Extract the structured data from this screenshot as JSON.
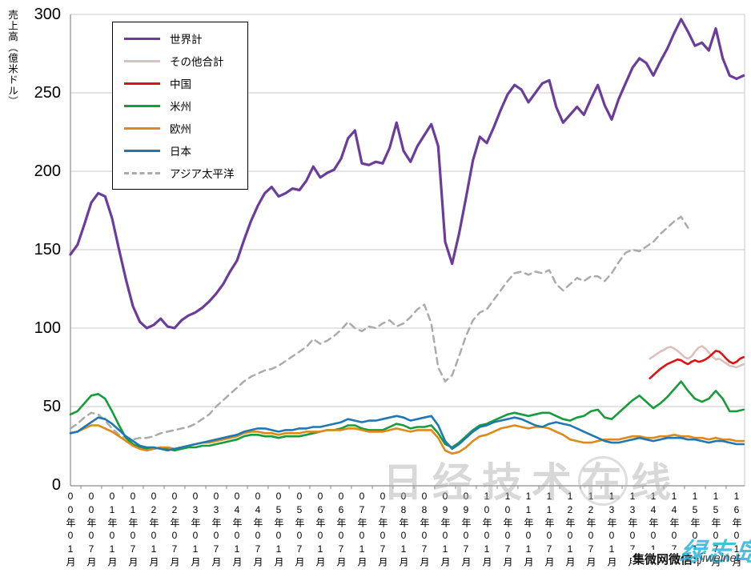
{
  "y_axis": {
    "title": "売上高（億米ドル）",
    "ticks": [
      "300",
      "250",
      "200",
      "150",
      "100",
      "50",
      "0"
    ],
    "max": 300,
    "min": 0,
    "step": 50
  },
  "x_axis": {
    "labels": [
      "00年01月",
      "00年07月",
      "01年01月",
      "01年07月",
      "02年01月",
      "02年07月",
      "03年01月",
      "03年07月",
      "04年01月",
      "04年07月",
      "05年01月",
      "05年07月",
      "06年01月",
      "06年07月",
      "07年01月",
      "07年07月",
      "08年01月",
      "08年07月",
      "09年01月",
      "09年07月",
      "10年01月",
      "10年07月",
      "11年01月",
      "11年07月",
      "12年01月",
      "12年07月",
      "13年01月",
      "13年07月",
      "14年01月",
      "14年07月",
      "15年01月",
      "15年07月",
      "16年01月"
    ]
  },
  "chart_data": {
    "type": "line",
    "title": "",
    "xlabel": "",
    "ylabel": "売上高（億米ドル）",
    "ylim": [
      0,
      300
    ],
    "grid": "horizontal",
    "legend_position": "top-left-box",
    "x_unit": "months since 2000-01 (each label step = 6 months)",
    "series": [
      {
        "name": "世界計",
        "color": "#6A3D9A",
        "dash": "solid",
        "width": 3.2,
        "start": 0,
        "step": 2,
        "values": [
          147,
          153,
          166,
          180,
          186,
          184,
          170,
          150,
          131,
          114,
          104,
          100,
          102,
          106,
          101,
          100,
          105,
          108,
          110,
          113,
          117,
          122,
          128,
          136,
          143,
          156,
          168,
          178,
          186,
          190,
          184,
          186,
          189,
          188,
          194,
          203,
          196,
          199,
          201,
          208,
          221,
          226,
          205,
          204,
          206,
          205,
          215,
          231,
          213,
          206,
          216,
          223,
          230,
          216,
          155,
          141,
          160,
          183,
          207,
          222,
          218,
          228,
          239,
          249,
          255,
          252,
          244,
          250,
          256,
          258,
          241,
          231,
          236,
          241,
          236,
          246,
          255,
          242,
          233,
          246,
          256,
          266,
          272,
          269,
          261,
          270,
          278,
          288,
          297,
          289,
          280,
          282,
          277,
          291,
          272,
          261,
          259,
          261
        ]
      },
      {
        "name": "その他合計",
        "color": "#DCC0BD",
        "dash": "solid",
        "width": 2.6,
        "start": 167,
        "step": 1,
        "values": [
          80.5,
          82,
          83.5,
          85,
          86,
          87.5,
          88,
          87,
          85.5,
          83.5,
          81.5,
          80.5,
          82,
          85,
          87.5,
          88.5,
          87,
          84.5,
          82,
          80,
          80.5,
          79,
          77.5,
          76,
          75.5,
          75,
          76,
          77
        ]
      },
      {
        "name": "中国",
        "color": "#E01111",
        "dash": "solid",
        "width": 2.6,
        "start": 167,
        "step": 1,
        "values": [
          68,
          70,
          72,
          74,
          75.5,
          77,
          78,
          79,
          80,
          79.5,
          78,
          77,
          78.5,
          79.5,
          78.5,
          79,
          80,
          81.5,
          83.5,
          85.5,
          85,
          83,
          80.5,
          78.5,
          77.5,
          78.5,
          80.5,
          81.5
        ]
      },
      {
        "name": "米州",
        "color": "#169C3B",
        "dash": "solid",
        "width": 2.6,
        "start": 0,
        "step": 2,
        "values": [
          45,
          47,
          52,
          57,
          58,
          55,
          47,
          38,
          30,
          26,
          24,
          23,
          23,
          24,
          23,
          22,
          23,
          24,
          24,
          25,
          25,
          26,
          27,
          28,
          29,
          31,
          32,
          32,
          31,
          31,
          30,
          31,
          31,
          31,
          32,
          33,
          34,
          35,
          35,
          36,
          38,
          38,
          36,
          35,
          35,
          35,
          37,
          39,
          38,
          36,
          37,
          37,
          38,
          33,
          26,
          24,
          27,
          31,
          35,
          38,
          39,
          41,
          43,
          45,
          46,
          45,
          44,
          45,
          46,
          46,
          44,
          42,
          41,
          43,
          44,
          47,
          48,
          43,
          42,
          46,
          50,
          54,
          57,
          53,
          49,
          52,
          56,
          61,
          66,
          60,
          55,
          53,
          55,
          60,
          55,
          47,
          47,
          48
        ]
      },
      {
        "name": "欧州",
        "color": "#DE8918",
        "dash": "solid",
        "width": 2.6,
        "start": 0,
        "step": 2,
        "values": [
          33,
          34,
          36,
          38,
          38,
          36,
          34,
          31,
          28,
          25,
          23,
          22,
          23,
          24,
          24,
          23,
          24,
          25,
          26,
          27,
          27,
          28,
          29,
          30,
          31,
          33,
          34,
          34,
          33,
          33,
          32,
          33,
          33,
          33,
          34,
          34,
          34,
          35,
          35,
          35,
          36,
          36,
          35,
          34,
          34,
          34,
          35,
          36,
          35,
          34,
          35,
          35,
          35,
          30,
          22,
          20,
          21,
          24,
          28,
          31,
          32,
          34,
          36,
          37,
          38,
          37,
          36,
          37,
          37,
          36,
          34,
          32,
          29,
          28,
          27,
          27,
          28,
          29,
          29,
          29,
          30,
          31,
          31,
          30,
          30,
          31,
          31,
          32,
          31,
          31,
          30,
          30,
          29,
          30,
          29,
          29,
          28,
          28
        ]
      },
      {
        "name": "日本",
        "color": "#1F78B4",
        "dash": "solid",
        "width": 2.6,
        "start": 0,
        "step": 2,
        "values": [
          33,
          34,
          37,
          40,
          43,
          42,
          39,
          35,
          31,
          28,
          25,
          24,
          24,
          23,
          22,
          23,
          24,
          25,
          26,
          27,
          28,
          29,
          30,
          31,
          32,
          34,
          35,
          36,
          36,
          35,
          34,
          35,
          35,
          36,
          36,
          37,
          37,
          38,
          39,
          40,
          42,
          41,
          40,
          41,
          41,
          42,
          43,
          44,
          43,
          41,
          42,
          43,
          44,
          38,
          28,
          23,
          26,
          30,
          34,
          37,
          38,
          40,
          41,
          42,
          43,
          42,
          40,
          38,
          37,
          39,
          40,
          39,
          38,
          36,
          34,
          32,
          30,
          28,
          27,
          27,
          28,
          29,
          30,
          29,
          28,
          29,
          30,
          30,
          30,
          29,
          29,
          28,
          27,
          28,
          28,
          27,
          26,
          26
        ]
      },
      {
        "name": "アジア太平洋",
        "color": "#ABABAB",
        "dash": "dashed",
        "width": 2.5,
        "start": 0,
        "step": 2,
        "values": [
          36,
          39,
          43,
          46,
          45,
          41,
          36,
          32,
          30,
          29,
          30,
          30,
          31,
          33,
          34,
          35,
          36,
          37,
          39,
          42,
          45,
          50,
          54,
          58,
          62,
          66,
          69,
          71,
          73,
          74,
          76,
          79,
          82,
          85,
          88,
          93,
          90,
          92,
          95,
          99,
          104,
          100,
          98,
          101,
          100,
          103,
          105,
          101,
          103,
          107,
          112,
          115,
          103,
          75,
          66,
          70,
          82,
          95,
          105,
          110,
          112,
          118,
          124,
          130,
          135,
          136,
          134,
          136,
          135,
          137,
          128,
          124,
          128,
          132,
          130,
          133,
          133,
          130,
          135,
          142,
          148,
          150,
          149,
          152,
          155,
          160,
          164,
          168,
          171,
          164
        ]
      }
    ]
  },
  "watermarks": {
    "center_text": "日经技术在线",
    "bottom_black": "集微网微信:",
    "bottom_name": "jiweinet",
    "bottom_cyan": "绿志岛"
  }
}
